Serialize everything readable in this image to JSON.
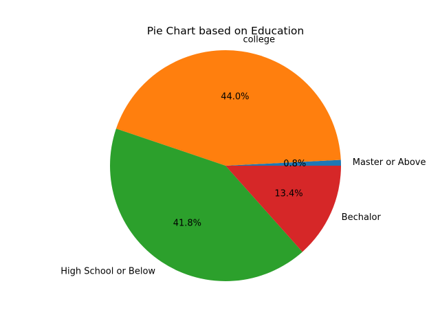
{
  "chart_data": {
    "type": "pie",
    "title": "Pie Chart based on Education",
    "start_angle_deg": 0,
    "direction": "counterclockwise",
    "slices": [
      {
        "label": "Master or Above",
        "value": 0.8,
        "pct_label": "0.8%",
        "color": "#1f77b4"
      },
      {
        "label": "college",
        "value": 44.0,
        "pct_label": "44.0%",
        "color": "#ff7f0e"
      },
      {
        "label": "High School or Below",
        "value": 41.8,
        "pct_label": "41.8%",
        "color": "#2ca02c"
      },
      {
        "label": "Bechalor",
        "value": 13.4,
        "pct_label": "13.4%",
        "color": "#d62728"
      }
    ]
  }
}
